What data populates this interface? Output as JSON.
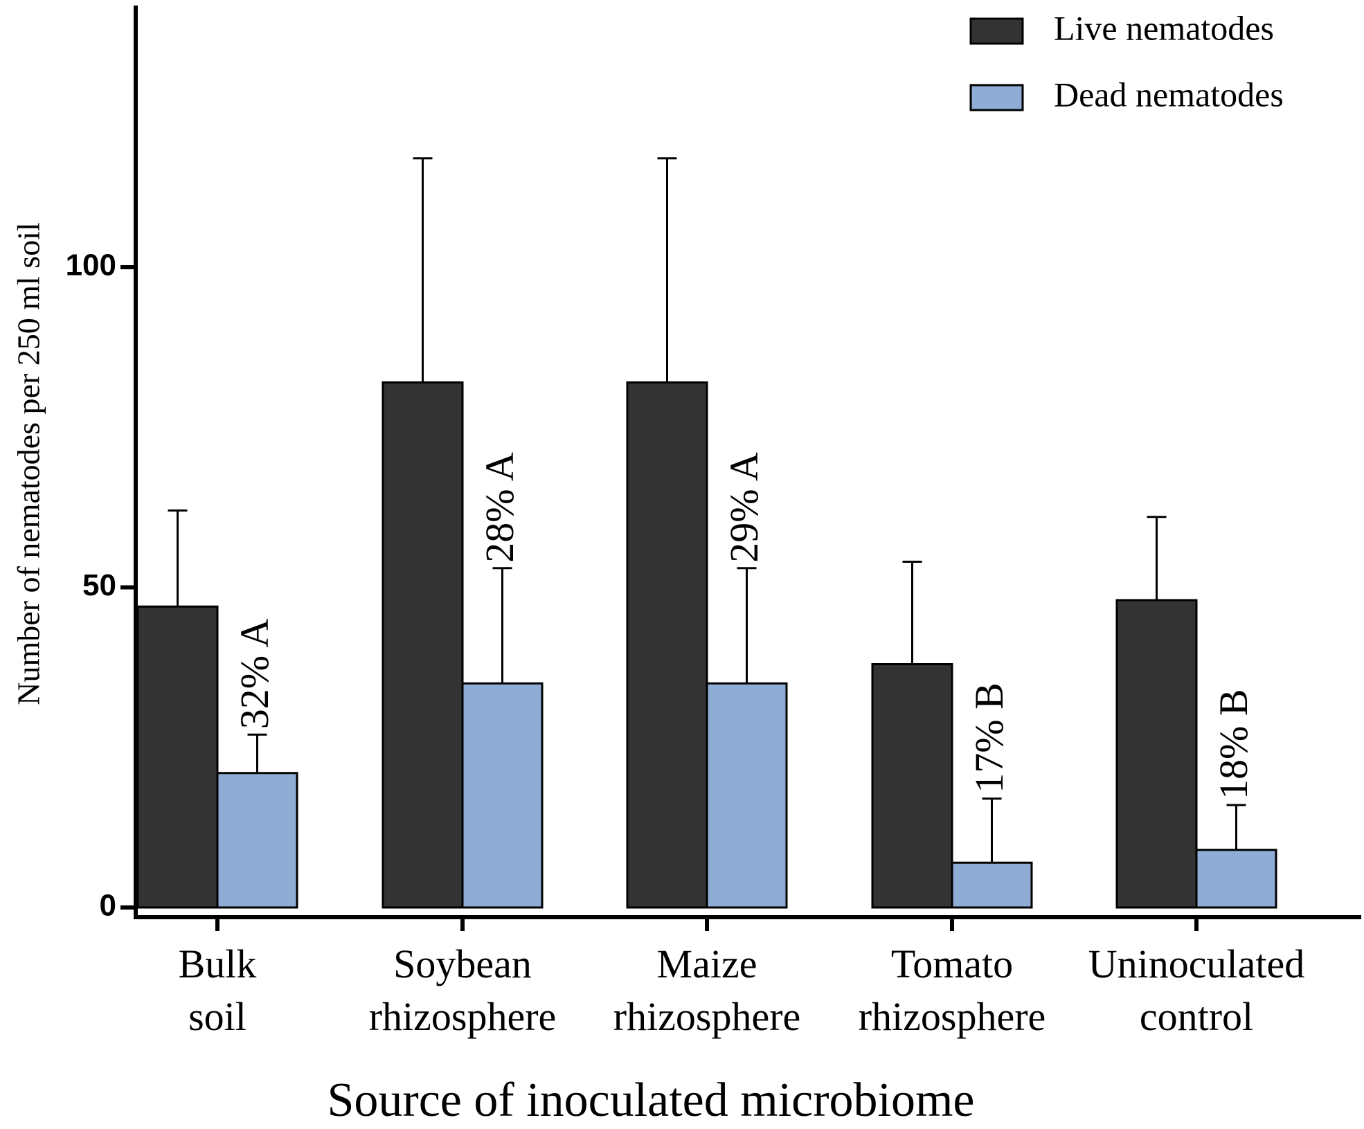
{
  "chart_data": {
    "type": "bar",
    "title": "",
    "xlabel": "Source of inoculated microbiome",
    "ylabel": "Number of nematodes per 250 ml soil",
    "ylim": [
      0,
      142
    ],
    "yticks": [
      "0",
      "50",
      "100"
    ],
    "categories": [
      [
        "Bulk",
        "soil"
      ],
      [
        "Soybean",
        "rhizosphere"
      ],
      [
        "Maize",
        "rhizosphere"
      ],
      [
        "Tomato",
        "rhizosphere"
      ],
      [
        "Uninoculated",
        "control"
      ]
    ],
    "series": [
      {
        "name": "Live nematodes",
        "color": "#333333",
        "values": [
          47,
          82,
          82,
          38,
          48
        ],
        "errors": [
          15,
          35,
          35,
          16,
          13
        ]
      },
      {
        "name": "Dead nematodes",
        "color": "#8eacd4",
        "values": [
          21,
          35,
          35,
          7,
          9
        ],
        "errors": [
          6,
          18,
          18,
          10,
          7
        ]
      }
    ],
    "annotations": [
      "32% A",
      "28% A",
      "29% A",
      "17% B",
      "18% B"
    ],
    "legend_position": "top-right",
    "grid": false
  }
}
